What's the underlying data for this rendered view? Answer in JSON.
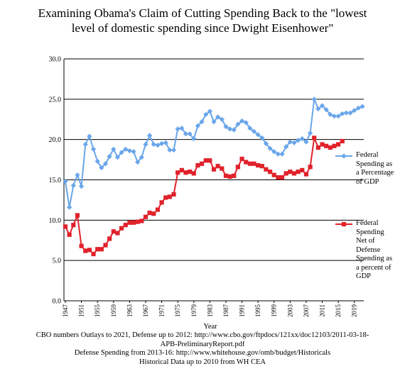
{
  "chart_data": {
    "type": "line",
    "title_lines": [
      "Examining Obama's Claim of Cutting Spending Back to the \"lowest",
      "level of domestic spending since Dwight Eisenhower\""
    ],
    "xlabel": "Year",
    "ylabel": "",
    "ylim": [
      0,
      30
    ],
    "y_ticks": [
      "0.0",
      "5.0",
      "10.0",
      "15.0",
      "20.0",
      "25.0",
      "30.0"
    ],
    "y_tick_values": [
      0,
      5,
      10,
      15,
      20,
      25,
      30
    ],
    "x_range": [
      1947,
      2021
    ],
    "x_ticks": [
      1947,
      1951,
      1955,
      1959,
      1963,
      1967,
      1971,
      1975,
      1979,
      1983,
      1987,
      1991,
      1995,
      1999,
      2003,
      2007,
      2011,
      2015,
      2019
    ],
    "grid": "horizontal",
    "legend_position": "right",
    "series": [
      {
        "name": "Federal Spending as a Percentage of GDP",
        "legend_label": "Federal\nSpending as\na Percentage\nof GDP",
        "color": "#6aa6ea",
        "marker": "diamond",
        "x": [
          1947,
          1948,
          1949,
          1950,
          1951,
          1952,
          1953,
          1954,
          1955,
          1956,
          1957,
          1958,
          1959,
          1960,
          1961,
          1962,
          1963,
          1964,
          1965,
          1966,
          1967,
          1968,
          1969,
          1970,
          1971,
          1972,
          1973,
          1974,
          1975,
          1976,
          1977,
          1978,
          1979,
          1980,
          1981,
          1982,
          1983,
          1984,
          1985,
          1986,
          1987,
          1988,
          1989,
          1990,
          1991,
          1992,
          1993,
          1994,
          1995,
          1996,
          1997,
          1998,
          1999,
          2000,
          2001,
          2002,
          2003,
          2004,
          2005,
          2006,
          2007,
          2008,
          2009,
          2010,
          2011,
          2012,
          2013,
          2014,
          2015,
          2016,
          2017,
          2018,
          2019,
          2020,
          2021
        ],
        "values": [
          14.8,
          11.6,
          14.3,
          15.6,
          14.2,
          19.4,
          20.4,
          18.8,
          17.3,
          16.5,
          17.0,
          17.9,
          18.8,
          17.8,
          18.4,
          18.8,
          18.6,
          18.5,
          17.2,
          17.8,
          19.4,
          20.5,
          19.4,
          19.3,
          19.5,
          19.6,
          18.7,
          18.7,
          21.3,
          21.4,
          20.7,
          20.7,
          20.1,
          21.7,
          22.2,
          23.1,
          23.5,
          22.2,
          22.8,
          22.5,
          21.6,
          21.3,
          21.2,
          21.9,
          22.3,
          22.1,
          21.4,
          21.0,
          20.6,
          20.2,
          19.5,
          18.9,
          18.5,
          18.2,
          18.2,
          19.1,
          19.7,
          19.6,
          19.9,
          20.1,
          19.7,
          20.8,
          25.0,
          23.8,
          24.2,
          23.7,
          23.1,
          22.9,
          22.9,
          23.2,
          23.3,
          23.3,
          23.6,
          23.9,
          24.1
        ]
      },
      {
        "name": "Federal Spending Net of Defense Spending as a percent of GDP",
        "legend_label": "Federal\nSpending\nNet of\nDefense\nSpending as\na percent of\nGDP",
        "color": "#e0222b",
        "marker": "square",
        "x": [
          1947,
          1948,
          1949,
          1950,
          1951,
          1952,
          1953,
          1954,
          1955,
          1956,
          1957,
          1958,
          1959,
          1960,
          1961,
          1962,
          1963,
          1964,
          1965,
          1966,
          1967,
          1968,
          1969,
          1970,
          1971,
          1972,
          1973,
          1974,
          1975,
          1976,
          1977,
          1978,
          1979,
          1980,
          1981,
          1982,
          1983,
          1984,
          1985,
          1986,
          1987,
          1988,
          1989,
          1990,
          1991,
          1992,
          1993,
          1994,
          1995,
          1996,
          1997,
          1998,
          1999,
          2000,
          2001,
          2002,
          2003,
          2004,
          2005,
          2006,
          2007,
          2008,
          2009,
          2010,
          2011,
          2012,
          2013,
          2014,
          2015,
          2016
        ],
        "values": [
          9.2,
          8.2,
          9.4,
          10.6,
          6.8,
          6.2,
          6.3,
          5.8,
          6.4,
          6.4,
          6.9,
          7.7,
          8.6,
          8.4,
          9.0,
          9.4,
          9.7,
          9.7,
          9.8,
          9.9,
          10.4,
          10.9,
          10.8,
          11.3,
          12.2,
          12.8,
          12.9,
          13.2,
          15.9,
          16.2,
          15.9,
          16.0,
          15.8,
          16.8,
          17.0,
          17.4,
          17.4,
          16.3,
          16.7,
          16.4,
          15.5,
          15.4,
          15.5,
          16.6,
          17.6,
          17.2,
          17.0,
          17.0,
          16.8,
          16.7,
          16.3,
          16.0,
          15.6,
          15.3,
          15.3,
          15.8,
          16.0,
          15.8,
          16.0,
          16.2,
          15.7,
          16.6,
          20.2,
          19.0,
          19.4,
          19.2,
          19.0,
          19.2,
          19.4,
          19.8
        ]
      }
    ]
  },
  "notes": [
    "CBO numbers  Outlays to 2021, Defense up to 2012: http://www.cbo.gov/ftpdocs/121xx/doc12103/2011-03-18-",
    "APB-PreliminaryReport.pdf",
    "Defense Spending from 2013-16: http://www.whitehouse.gov/omb/budget/Historicals",
    "Historical Data up to 2010 from WH CEA"
  ]
}
